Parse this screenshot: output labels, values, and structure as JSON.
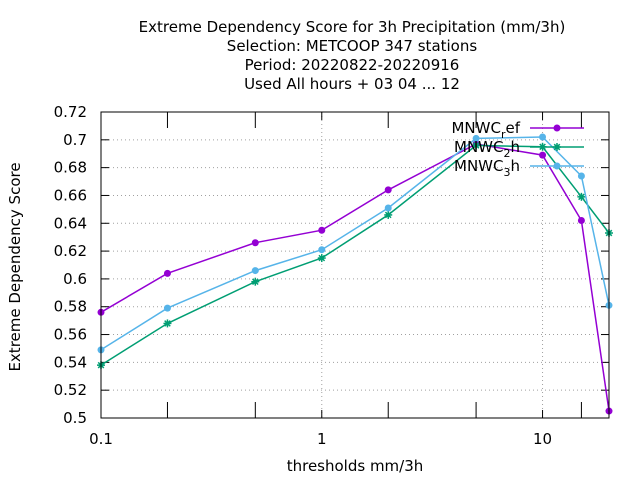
{
  "chart_data": {
    "type": "line",
    "title_lines": [
      "Extreme Dependency Score  for 3h Precipitation (mm/3h)",
      "Selection: METCOOP    347 stations",
      "Period: 20220822-20220916",
      "Used  All hours + 03 04 ... 12"
    ],
    "xlabel": "thresholds mm/3h",
    "ylabel": "Extreme Dependency Score",
    "x_scale": "log",
    "xlim": [
      0.1,
      20
    ],
    "ylim": [
      0.5,
      0.72
    ],
    "x_ticks": [
      {
        "value": 0.1,
        "label": "0.1"
      },
      {
        "value": 1,
        "label": "1"
      },
      {
        "value": 10,
        "label": "10"
      }
    ],
    "x_minor_ticks": [
      0.2,
      0.5,
      2,
      5,
      15
    ],
    "y_ticks": [
      {
        "value": 0.5,
        "label": "0.5"
      },
      {
        "value": 0.52,
        "label": "0.52"
      },
      {
        "value": 0.54,
        "label": "0.54"
      },
      {
        "value": 0.56,
        "label": "0.56"
      },
      {
        "value": 0.58,
        "label": "0.58"
      },
      {
        "value": 0.6,
        "label": "0.6"
      },
      {
        "value": 0.62,
        "label": "0.62"
      },
      {
        "value": 0.64,
        "label": "0.64"
      },
      {
        "value": 0.66,
        "label": "0.66"
      },
      {
        "value": 0.68,
        "label": "0.68"
      },
      {
        "value": 0.7,
        "label": "0.7"
      },
      {
        "value": 0.72,
        "label": "0.72"
      }
    ],
    "grid": true,
    "legend_position": "top-right",
    "x": [
      0.1,
      0.2,
      0.5,
      1,
      2,
      5,
      10,
      15,
      20
    ],
    "series": [
      {
        "name": "MNWC_ref",
        "legend_main": "MNWC",
        "legend_sub": "r",
        "legend_rest": "ef",
        "color": "#9400d3",
        "marker": "circle",
        "values": [
          0.576,
          0.604,
          0.626,
          0.635,
          0.664,
          0.697,
          0.689,
          0.642,
          0.505
        ]
      },
      {
        "name": "MNWC_2h",
        "legend_main": "MNWC",
        "legend_sub": "2",
        "legend_rest": "h",
        "color": "#009e73",
        "marker": "asterisk",
        "values": [
          0.538,
          0.568,
          0.598,
          0.615,
          0.646,
          0.696,
          0.695,
          0.659,
          0.633
        ]
      },
      {
        "name": "MNWC_3h",
        "legend_main": "MNWC",
        "legend_sub": "3",
        "legend_rest": "h",
        "color": "#56b4e9",
        "marker": "circle",
        "values": [
          0.549,
          0.579,
          0.606,
          0.621,
          0.651,
          0.701,
          0.702,
          0.674,
          0.581
        ]
      }
    ]
  }
}
